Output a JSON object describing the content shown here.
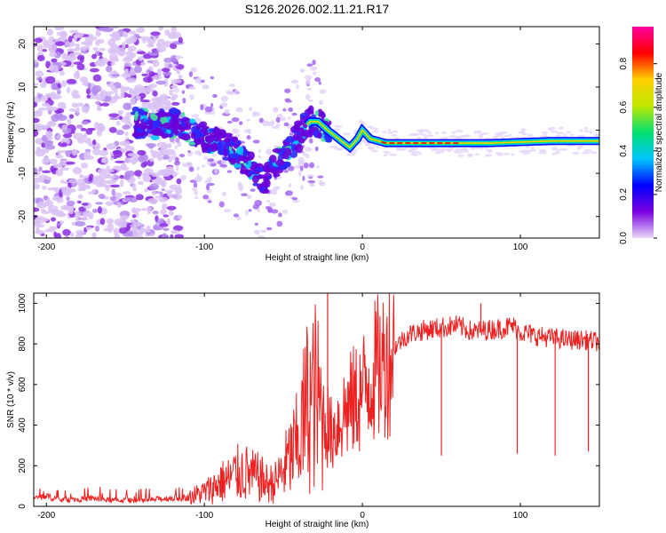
{
  "title": "S126.2026.002.11.21.R17",
  "chart_data": [
    {
      "type": "heatmap",
      "xlabel": "Height of straight line (km)",
      "ylabel": "Frequency (Hz)",
      "xlim": [
        -208,
        150
      ],
      "ylim": [
        -25,
        24
      ],
      "xticks": [
        -200,
        -100,
        0,
        100
      ],
      "yticks": [
        -20,
        -10,
        0,
        10,
        20
      ],
      "colorbar": {
        "label": "Normalized spectral amplitude",
        "range": [
          0,
          0.97
        ],
        "ticks": [
          0.0,
          0.2,
          0.4,
          0.6,
          0.8
        ],
        "tick_labels": [
          "0.0",
          "0.2",
          "0.4",
          "0.6",
          "0.8"
        ],
        "colormap": [
          "#e8d8f8",
          "#7a00e0",
          "#0000ff",
          "#00c8ff",
          "#00e070",
          "#c0e800",
          "#ffd000",
          "#ff0000",
          "#ff00a0"
        ]
      },
      "ridge": {
        "x": [
          -145,
          -130,
          -115,
          -105,
          -90,
          -80,
          -70,
          -62,
          -55,
          -45,
          -38,
          -33,
          -28,
          -22,
          -15,
          -8,
          -3,
          0,
          5,
          15,
          40,
          80,
          120,
          150
        ],
        "y": [
          2,
          1,
          2,
          -1,
          -3,
          -5,
          -9,
          -12,
          -8,
          -4,
          0,
          2,
          2,
          0,
          -2,
          -4,
          -2,
          0,
          -2,
          -3,
          -3,
          -3,
          -2.5,
          -2.5
        ]
      }
    },
    {
      "type": "line",
      "xlabel": "Height of straight line (km)",
      "ylabel": "SNR (10 * v/v)",
      "xlim": [
        -208,
        150
      ],
      "ylim": [
        0,
        1050
      ],
      "xticks": [
        -200,
        -100,
        0,
        100
      ],
      "yticks": [
        0,
        200,
        400,
        600,
        800,
        1000
      ],
      "color": "#ee2222",
      "series": [
        {
          "name": "SNR",
          "x": [
            -208,
            -200,
            -190,
            -180,
            -170,
            -160,
            -150,
            -140,
            -130,
            -120,
            -110,
            -100,
            -95,
            -90,
            -85,
            -80,
            -75,
            -70,
            -65,
            -60,
            -55,
            -50,
            -45,
            -40,
            -38,
            -35,
            -32,
            -30,
            -28,
            -25,
            -22,
            -20,
            -15,
            -10,
            -5,
            0,
            5,
            10,
            15,
            20,
            25,
            30,
            40,
            50,
            60,
            70,
            80,
            90,
            95,
            100,
            110,
            120,
            130,
            140,
            150
          ],
          "y": [
            40,
            50,
            30,
            35,
            40,
            30,
            30,
            28,
            35,
            40,
            45,
            70,
            90,
            120,
            130,
            160,
            170,
            150,
            140,
            110,
            120,
            180,
            250,
            320,
            400,
            500,
            520,
            550,
            500,
            450,
            400,
            350,
            420,
            480,
            520,
            560,
            640,
            680,
            720,
            780,
            820,
            850,
            870,
            880,
            890,
            860,
            870,
            880,
            890,
            860,
            840,
            830,
            820,
            820,
            810
          ]
        }
      ],
      "spikes": [
        {
          "x": -22,
          "y": 1050
        },
        {
          "x": 50,
          "y": 250
        },
        {
          "x": 75,
          "y": 1000
        },
        {
          "x": 98,
          "y": 260
        },
        {
          "x": 122,
          "y": 250
        },
        {
          "x": 143,
          "y": 270
        }
      ]
    }
  ]
}
